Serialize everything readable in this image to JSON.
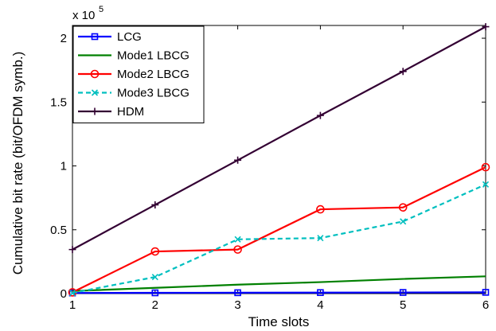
{
  "chart_data": {
    "type": "line",
    "xlabel": "Time slots",
    "ylabel": "Cumulative bit rate (bit/OFDM symb.)",
    "exponent_base": "x 10",
    "exponent_power": "5",
    "xlim": [
      1,
      6
    ],
    "ylim": [
      0,
      210000
    ],
    "x": [
      1,
      2,
      3,
      4,
      5,
      6
    ],
    "x_ticks": [
      "1",
      "2",
      "3",
      "4",
      "5",
      "6"
    ],
    "y_ticks": [
      {
        "value": 0,
        "label": "0"
      },
      {
        "value": 50000,
        "label": "0.5"
      },
      {
        "value": 100000,
        "label": "1"
      },
      {
        "value": 150000,
        "label": "1.5"
      },
      {
        "value": 200000,
        "label": "2"
      }
    ],
    "grid": false,
    "legend_position": "top-left",
    "series": [
      {
        "name": "LCG",
        "color": "#0000ff",
        "dash": "solid",
        "marker": "square",
        "values": [
          500,
          600,
          700,
          800,
          900,
          1000
        ]
      },
      {
        "name": "Mode1 LBCG",
        "color": "#008000",
        "dash": "solid",
        "marker": "none",
        "values": [
          2000,
          4500,
          7000,
          9000,
          11500,
          13500
        ]
      },
      {
        "name": "Mode2 LBCG",
        "color": "#ff0000",
        "dash": "solid",
        "marker": "circle",
        "values": [
          1000,
          33000,
          34500,
          66000,
          67500,
          99000
        ]
      },
      {
        "name": "Mode3 LBCG",
        "color": "#00bfbf",
        "dash": "dashed",
        "marker": "x",
        "values": [
          500,
          13000,
          42500,
          43500,
          56500,
          85500
        ]
      },
      {
        "name": "HDM",
        "color": "#330033",
        "dash": "solid",
        "marker": "plus",
        "values": [
          34500,
          69500,
          104500,
          139500,
          174000,
          209000
        ]
      }
    ]
  }
}
